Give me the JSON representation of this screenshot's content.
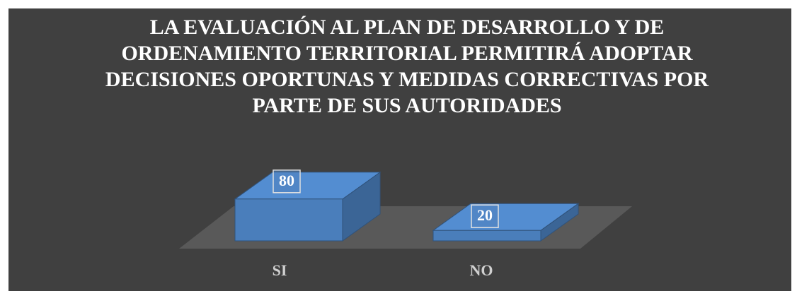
{
  "chart_data": {
    "type": "bar3d",
    "title": "LA EVALUACIÓN AL PLAN DE DESARROLLO Y DE ORDENAMIENTO TERRITORIAL PERMITIRÁ ADOPTAR DECISIONES OPORTUNAS Y MEDIDAS CORRECTIVAS POR PARTE DE SUS AUTORIDADES",
    "categories": [
      "SI",
      "NO"
    ],
    "values": [
      80,
      20
    ],
    "color": "#4a7ebb"
  }
}
